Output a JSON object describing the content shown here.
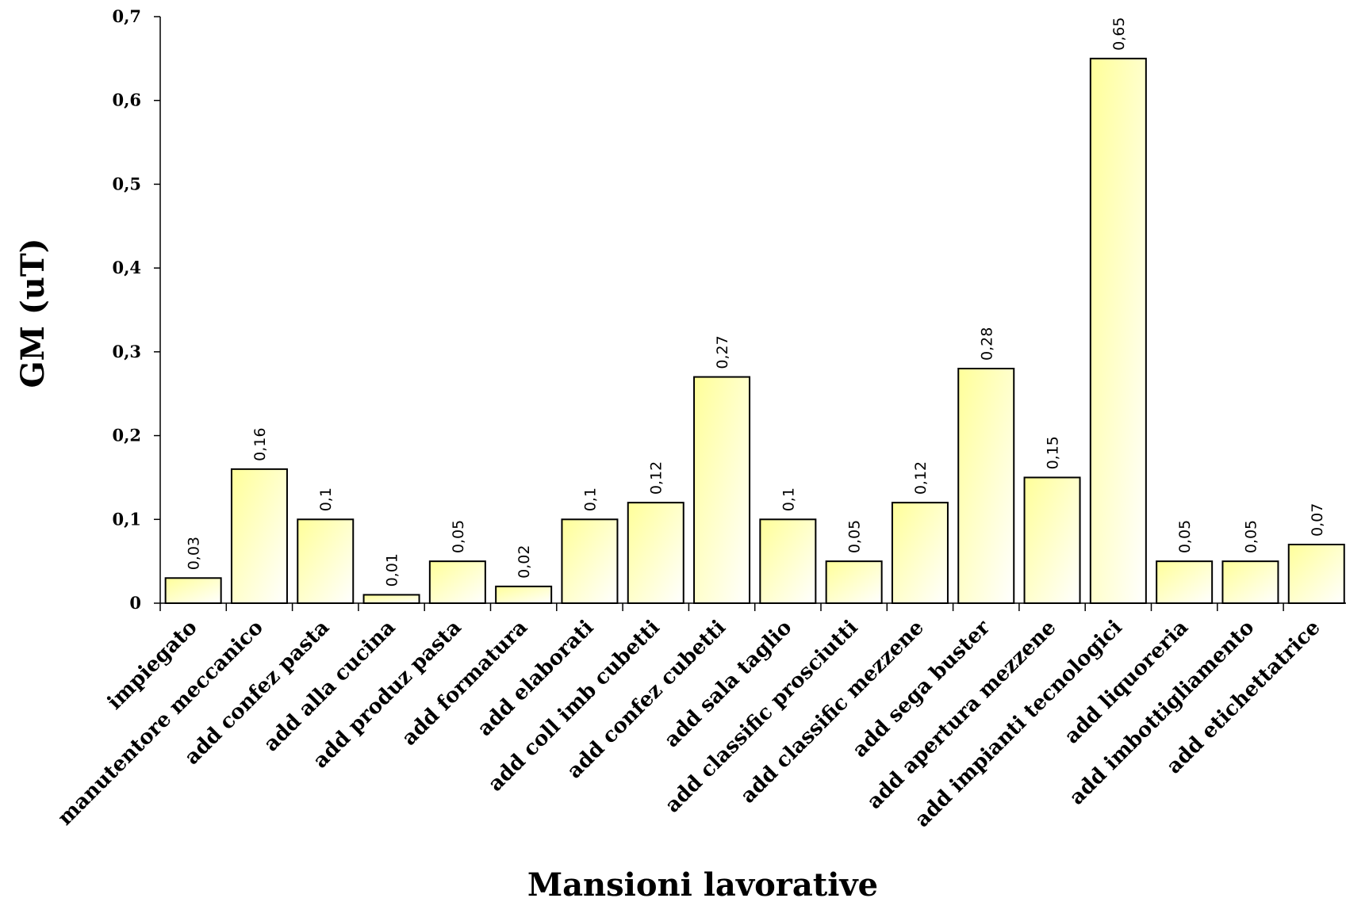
{
  "chart_data": {
    "type": "bar",
    "title": "",
    "xlabel": "Mansioni lavorative",
    "ylabel": "GM (uT)",
    "ylim": [
      0,
      0.7
    ],
    "yticks": [
      "0",
      "0,1",
      "0,2",
      "0,3",
      "0,4",
      "0,5",
      "0,6",
      "0,7"
    ],
    "grid": false,
    "legend": "none",
    "bar_color_light": "#ffffff",
    "bar_color_dark": "#ffff99",
    "bar_edge_color": "#000000",
    "categories": [
      "impiegato",
      "manutentore meccanico",
      "add confez pasta",
      "add alla cucina",
      "add produz pasta",
      "add formatura",
      "add elaborati",
      "add coll imb cubetti",
      "add confez cubetti",
      "add sala taglio",
      "add classific prosciutti",
      "add classific mezzene",
      "add sega buster",
      "add apertura mezzene",
      "add impianti tecnologici",
      "add liquoreria",
      "add imbottigliamento",
      "add etichettatrice"
    ],
    "values": [
      0.03,
      0.16,
      0.1,
      0.01,
      0.05,
      0.02,
      0.1,
      0.12,
      0.27,
      0.1,
      0.05,
      0.12,
      0.28,
      0.15,
      0.65,
      0.05,
      0.05,
      0.07
    ],
    "value_labels": [
      "0,03",
      "0,16",
      "0,1",
      "0,01",
      "0,05",
      "0,02",
      "0,1",
      "0,12",
      "0,27",
      "0,1",
      "0,05",
      "0,12",
      "0,28",
      "0,15",
      "0,65",
      "0,05",
      "0,05",
      "0,07"
    ]
  }
}
